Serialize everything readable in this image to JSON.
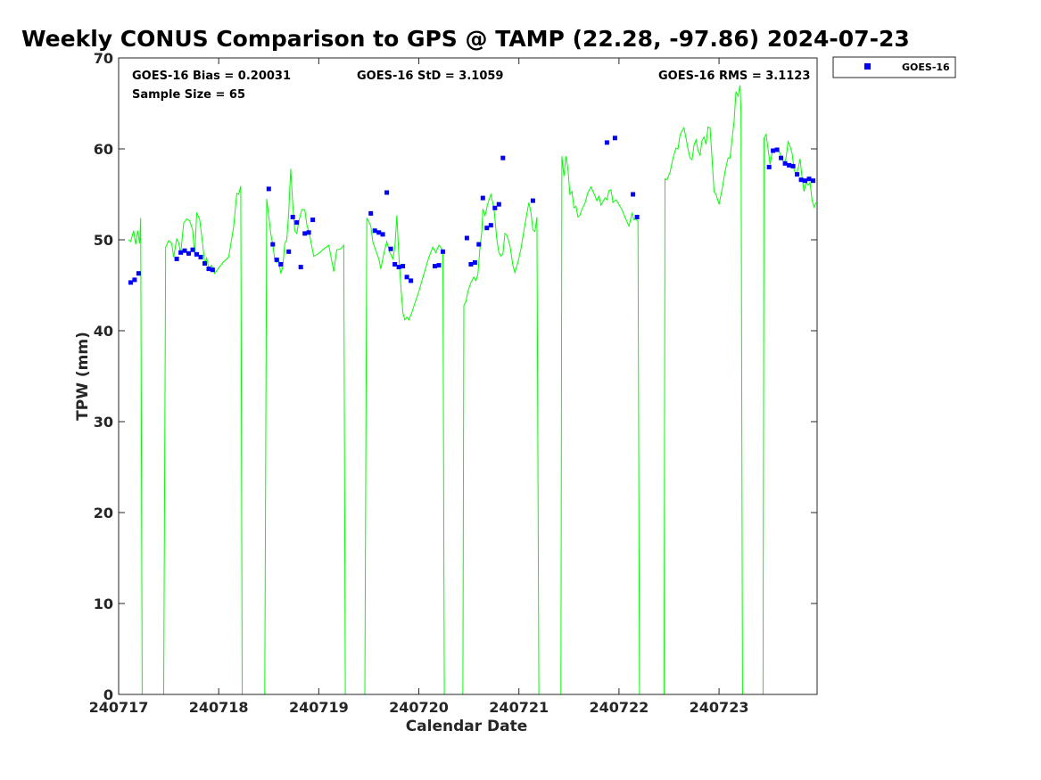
{
  "chart_data": {
    "type": "scatter",
    "title": "Weekly CONUS Comparison to GPS @ TAMP (22.28, -97.86) 2024-07-23",
    "xlabel": "Calendar Date",
    "ylabel": "TPW (mm)",
    "xlim": [
      0,
      6.98
    ],
    "ylim": [
      0,
      70
    ],
    "x_ticks": [
      0,
      1,
      2,
      3,
      4,
      5,
      6
    ],
    "x_tick_labels": [
      "240717",
      "240718",
      "240719",
      "240720",
      "240721",
      "240722",
      "240723"
    ],
    "y_ticks": [
      0,
      10,
      20,
      30,
      40,
      50,
      60,
      70
    ],
    "grid": false,
    "legend_position": "top-right (outside axes)",
    "colors": {
      "goes": "#0000ff",
      "gps": "#00ff00"
    },
    "annotations": {
      "bias": "GOES-16 Bias = 0.20031",
      "std": "GOES-16 StD = 3.1059",
      "rms": "GOES-16 RMS = 3.1123",
      "sample": "Sample Size = 65"
    },
    "series": [
      {
        "name": "GOES-16",
        "marker": "square",
        "color": "#0000ff",
        "points": [
          [
            0.12,
            45.3
          ],
          [
            0.16,
            45.6
          ],
          [
            0.2,
            46.3
          ],
          [
            0.58,
            47.9
          ],
          [
            0.62,
            48.6
          ],
          [
            0.66,
            48.8
          ],
          [
            0.7,
            48.5
          ],
          [
            0.74,
            48.9
          ],
          [
            0.78,
            48.4
          ],
          [
            0.82,
            48.1
          ],
          [
            0.86,
            47.4
          ],
          [
            0.9,
            46.8
          ],
          [
            0.94,
            46.7
          ],
          [
            1.5,
            55.6
          ],
          [
            1.54,
            49.5
          ],
          [
            1.58,
            47.8
          ],
          [
            1.62,
            47.3
          ],
          [
            1.7,
            48.7
          ],
          [
            1.74,
            52.5
          ],
          [
            1.78,
            51.9
          ],
          [
            1.82,
            47.0
          ],
          [
            1.86,
            50.7
          ],
          [
            1.9,
            50.8
          ],
          [
            1.94,
            52.2
          ],
          [
            2.52,
            52.9
          ],
          [
            2.56,
            51.0
          ],
          [
            2.6,
            50.8
          ],
          [
            2.64,
            50.6
          ],
          [
            2.68,
            55.2
          ],
          [
            2.72,
            49.0
          ],
          [
            2.76,
            47.3
          ],
          [
            2.8,
            47.0
          ],
          [
            2.84,
            47.1
          ],
          [
            2.88,
            45.9
          ],
          [
            2.92,
            45.5
          ],
          [
            3.16,
            47.1
          ],
          [
            3.2,
            47.2
          ],
          [
            3.24,
            48.7
          ],
          [
            3.48,
            50.2
          ],
          [
            3.52,
            47.3
          ],
          [
            3.56,
            47.5
          ],
          [
            3.6,
            49.5
          ],
          [
            3.64,
            54.6
          ],
          [
            3.68,
            51.3
          ],
          [
            3.72,
            51.6
          ],
          [
            3.76,
            53.5
          ],
          [
            3.8,
            53.9
          ],
          [
            3.84,
            59.0
          ],
          [
            4.14,
            54.3
          ],
          [
            4.88,
            60.7
          ],
          [
            4.96,
            61.2
          ],
          [
            5.14,
            55.0
          ],
          [
            5.18,
            52.5
          ],
          [
            6.5,
            58.0
          ],
          [
            6.54,
            59.8
          ],
          [
            6.58,
            59.9
          ],
          [
            6.62,
            59.0
          ],
          [
            6.66,
            58.4
          ],
          [
            6.7,
            58.2
          ],
          [
            6.74,
            58.1
          ],
          [
            6.78,
            57.2
          ],
          [
            6.82,
            56.6
          ],
          [
            6.86,
            56.5
          ],
          [
            6.9,
            56.7
          ],
          [
            6.94,
            56.5
          ]
        ]
      },
      {
        "name": "",
        "type": "line",
        "color": "#00ff00",
        "points": [
          [
            0.1,
            50.0
          ],
          [
            0.12,
            49.8
          ],
          [
            0.15,
            51.0
          ],
          [
            0.17,
            49.5
          ],
          [
            0.19,
            51.0
          ],
          [
            0.21,
            49.6
          ],
          [
            0.22,
            52.4
          ],
          [
            0.235,
            0
          ],
          [
            0.45,
            0
          ],
          [
            0.47,
            49.2
          ],
          [
            0.5,
            49.9
          ],
          [
            0.53,
            49.6
          ],
          [
            0.55,
            48.1
          ],
          [
            0.58,
            50.1
          ],
          [
            0.6,
            49.7
          ],
          [
            0.62,
            48.5
          ],
          [
            0.65,
            51.8
          ],
          [
            0.68,
            52.3
          ],
          [
            0.71,
            52.1
          ],
          [
            0.74,
            51.1
          ],
          [
            0.76,
            48.2
          ],
          [
            0.78,
            53.0
          ],
          [
            0.81,
            52.2
          ],
          [
            0.84,
            49.5
          ],
          [
            0.86,
            47.4
          ],
          [
            0.88,
            48.0
          ],
          [
            0.9,
            46.8
          ],
          [
            0.93,
            47.2
          ],
          [
            0.96,
            46.3
          ],
          [
            1.0,
            46.9
          ],
          [
            1.05,
            47.6
          ],
          [
            1.1,
            48.1
          ],
          [
            1.15,
            51.5
          ],
          [
            1.18,
            55.1
          ],
          [
            1.2,
            55.0
          ],
          [
            1.22,
            55.9
          ],
          [
            1.235,
            0
          ],
          [
            1.46,
            0
          ],
          [
            1.48,
            54.5
          ],
          [
            1.5,
            52.6
          ],
          [
            1.52,
            50.7
          ],
          [
            1.54,
            49.5
          ],
          [
            1.56,
            47.8
          ],
          [
            1.58,
            47.5
          ],
          [
            1.6,
            47.8
          ],
          [
            1.62,
            46.3
          ],
          [
            1.64,
            47.0
          ],
          [
            1.66,
            49.6
          ],
          [
            1.68,
            50.0
          ],
          [
            1.7,
            53.1
          ],
          [
            1.72,
            57.8
          ],
          [
            1.74,
            53.9
          ],
          [
            1.76,
            51.0
          ],
          [
            1.78,
            50.7
          ],
          [
            1.8,
            52.0
          ],
          [
            1.83,
            53.3
          ],
          [
            1.86,
            53.3
          ],
          [
            1.88,
            51.7
          ],
          [
            1.91,
            50.4
          ],
          [
            1.95,
            48.2
          ],
          [
            2.0,
            48.5
          ],
          [
            2.05,
            49.0
          ],
          [
            2.1,
            49.4
          ],
          [
            2.15,
            46.5
          ],
          [
            2.18,
            48.9
          ],
          [
            2.22,
            49.0
          ],
          [
            2.25,
            49.4
          ],
          [
            2.265,
            0
          ],
          [
            2.46,
            0
          ],
          [
            2.48,
            52.4
          ],
          [
            2.5,
            52.0
          ],
          [
            2.52,
            51.5
          ],
          [
            2.54,
            49.8
          ],
          [
            2.57,
            48.8
          ],
          [
            2.6,
            47.9
          ],
          [
            2.62,
            46.8
          ],
          [
            2.65,
            48.5
          ],
          [
            2.68,
            49.8
          ],
          [
            2.71,
            48.6
          ],
          [
            2.74,
            47.9
          ],
          [
            2.76,
            49.1
          ],
          [
            2.78,
            52.7
          ],
          [
            2.8,
            48.3
          ],
          [
            2.82,
            45.0
          ],
          [
            2.84,
            42.0
          ],
          [
            2.86,
            41.2
          ],
          [
            2.88,
            41.5
          ],
          [
            2.9,
            41.2
          ],
          [
            2.93,
            42.0
          ],
          [
            2.96,
            43.0
          ],
          [
            3.0,
            44.3
          ],
          [
            3.05,
            46.2
          ],
          [
            3.1,
            48.1
          ],
          [
            3.14,
            49.2
          ],
          [
            3.17,
            48.6
          ],
          [
            3.2,
            49.4
          ],
          [
            3.23,
            49.0
          ],
          [
            3.24,
            48.8
          ],
          [
            3.255,
            0
          ],
          [
            3.44,
            0
          ],
          [
            3.45,
            42.8
          ],
          [
            3.47,
            43.2
          ],
          [
            3.49,
            44.3
          ],
          [
            3.52,
            45.3
          ],
          [
            3.55,
            45.9
          ],
          [
            3.57,
            45.5
          ],
          [
            3.59,
            46.2
          ],
          [
            3.61,
            49.0
          ],
          [
            3.63,
            51.0
          ],
          [
            3.64,
            53.4
          ],
          [
            3.66,
            52.6
          ],
          [
            3.69,
            54.0
          ],
          [
            3.72,
            55.0
          ],
          [
            3.75,
            53.5
          ],
          [
            3.78,
            50.0
          ],
          [
            3.8,
            48.6
          ],
          [
            3.82,
            48.2
          ],
          [
            3.84,
            48.4
          ],
          [
            3.86,
            50.7
          ],
          [
            3.88,
            50.5
          ],
          [
            3.91,
            49.4
          ],
          [
            3.94,
            47.2
          ],
          [
            3.96,
            46.4
          ],
          [
            3.99,
            47.5
          ],
          [
            4.02,
            49.0
          ],
          [
            4.05,
            51.0
          ],
          [
            4.08,
            52.9
          ],
          [
            4.1,
            54.1
          ],
          [
            4.12,
            53.0
          ],
          [
            4.14,
            51.1
          ],
          [
            4.16,
            50.9
          ],
          [
            4.18,
            52.5
          ],
          [
            4.2,
            0
          ],
          [
            4.42,
            0
          ],
          [
            4.43,
            59.2
          ],
          [
            4.45,
            57.0
          ],
          [
            4.47,
            59.2
          ],
          [
            4.49,
            57.8
          ],
          [
            4.51,
            55.0
          ],
          [
            4.53,
            55.3
          ],
          [
            4.55,
            53.5
          ],
          [
            4.57,
            53.7
          ],
          [
            4.59,
            52.5
          ],
          [
            4.61,
            52.7
          ],
          [
            4.63,
            53.4
          ],
          [
            4.66,
            54.0
          ],
          [
            4.69,
            55.2
          ],
          [
            4.72,
            55.8
          ],
          [
            4.75,
            55.1
          ],
          [
            4.78,
            54.3
          ],
          [
            4.8,
            54.8
          ],
          [
            4.82,
            53.8
          ],
          [
            4.84,
            54.2
          ],
          [
            4.86,
            54.6
          ],
          [
            4.88,
            54.4
          ],
          [
            4.9,
            55.4
          ],
          [
            4.92,
            55.5
          ],
          [
            4.94,
            54.1
          ],
          [
            4.97,
            54.4
          ],
          [
            5.0,
            53.9
          ],
          [
            5.03,
            53.3
          ],
          [
            5.06,
            52.5
          ],
          [
            5.1,
            51.5
          ],
          [
            5.13,
            52.9
          ],
          [
            5.15,
            52.2
          ],
          [
            5.17,
            52.3
          ],
          [
            5.19,
            52.0
          ],
          [
            5.205,
            0
          ],
          [
            5.45,
            0
          ],
          [
            5.46,
            56.7
          ],
          [
            5.48,
            56.6
          ],
          [
            5.51,
            57.4
          ],
          [
            5.54,
            59.0
          ],
          [
            5.57,
            60.1
          ],
          [
            5.59,
            60.0
          ],
          [
            5.61,
            61.5
          ],
          [
            5.63,
            62.0
          ],
          [
            5.65,
            62.3
          ],
          [
            5.67,
            61.2
          ],
          [
            5.69,
            60.0
          ],
          [
            5.71,
            59.0
          ],
          [
            5.73,
            58.8
          ],
          [
            5.75,
            60.4
          ],
          [
            5.77,
            61.0
          ],
          [
            5.79,
            59.8
          ],
          [
            5.81,
            59.3
          ],
          [
            5.83,
            60.9
          ],
          [
            5.85,
            61.3
          ],
          [
            5.87,
            60.5
          ],
          [
            5.89,
            62.4
          ],
          [
            5.91,
            62.3
          ],
          [
            5.93,
            59.0
          ],
          [
            5.95,
            55.3
          ],
          [
            5.97,
            55.0
          ],
          [
            6.0,
            53.9
          ],
          [
            6.03,
            55.5
          ],
          [
            6.06,
            57.5
          ],
          [
            6.09,
            59.0
          ],
          [
            6.11,
            59.0
          ],
          [
            6.13,
            61.0
          ],
          [
            6.15,
            63.0
          ],
          [
            6.17,
            66.3
          ],
          [
            6.19,
            65.8
          ],
          [
            6.21,
            67.0
          ],
          [
            6.22,
            64.0
          ],
          [
            6.235,
            0
          ],
          [
            6.44,
            0
          ],
          [
            6.45,
            61.2
          ],
          [
            6.47,
            61.6
          ],
          [
            6.49,
            60.0
          ],
          [
            6.51,
            58.3
          ],
          [
            6.53,
            59.5
          ],
          [
            6.56,
            59.9
          ],
          [
            6.59,
            60.0
          ],
          [
            6.62,
            59.2
          ],
          [
            6.65,
            58.4
          ],
          [
            6.67,
            59.0
          ],
          [
            6.69,
            60.8
          ],
          [
            6.71,
            60.3
          ],
          [
            6.73,
            59.5
          ],
          [
            6.75,
            57.7
          ],
          [
            6.77,
            57.2
          ],
          [
            6.79,
            57.8
          ],
          [
            6.81,
            58.9
          ],
          [
            6.83,
            56.8
          ],
          [
            6.85,
            55.3
          ],
          [
            6.87,
            56.3
          ],
          [
            6.89,
            56.0
          ],
          [
            6.91,
            56.3
          ],
          [
            6.93,
            54.3
          ],
          [
            6.95,
            53.6
          ],
          [
            6.97,
            54.1
          ]
        ]
      }
    ]
  }
}
